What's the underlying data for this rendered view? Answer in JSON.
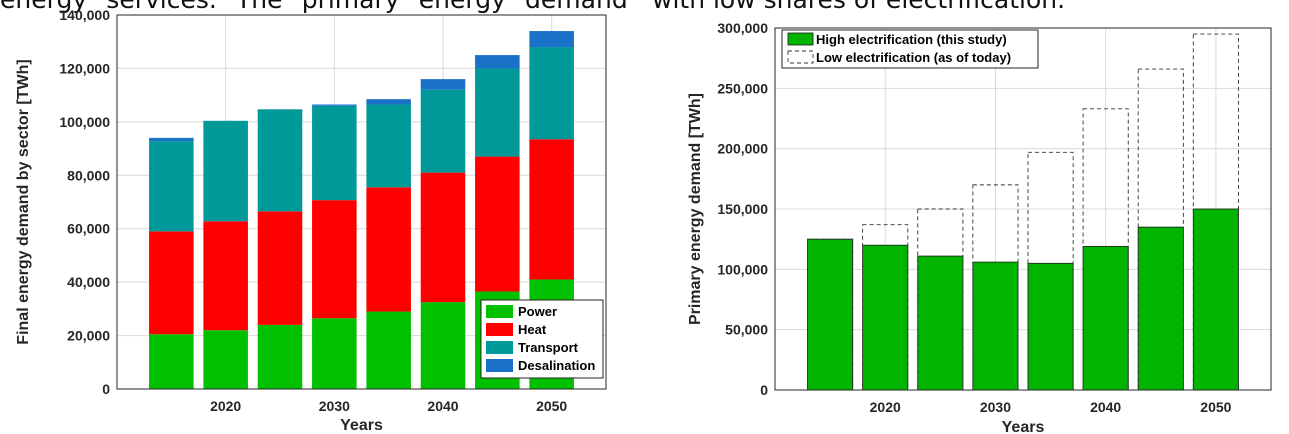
{
  "text_fragments": {
    "left": "energy services. The primary energy demand",
    "right": "with low shares of electrification."
  },
  "chart_data": [
    {
      "type": "bar",
      "stacked": true,
      "xlabel": "Years",
      "ylabel": "Final energy demand by sector [TWh]",
      "ylim": [
        0,
        140000
      ],
      "yticks": [
        "0",
        "20,000",
        "40,000",
        "60,000",
        "80,000",
        "100,000",
        "120,000",
        "140,000"
      ],
      "xticks": [
        "2020",
        "2030",
        "2040",
        "2050"
      ],
      "categories": [
        "2015",
        "2020",
        "2025",
        "2030",
        "2035",
        "2040",
        "2045",
        "2050"
      ],
      "grid": true,
      "legend_position": "bottom-right",
      "series": [
        {
          "name": "Power",
          "color": "#00c000",
          "values": [
            20500,
            22000,
            24000,
            26500,
            29000,
            32500,
            36500,
            41000
          ]
        },
        {
          "name": "Heat",
          "color": "#ff0000",
          "values": [
            38500,
            40800,
            42500,
            44200,
            46500,
            48500,
            50500,
            52500
          ]
        },
        {
          "name": "Transport",
          "color": "#009999",
          "values": [
            33700,
            37600,
            38200,
            35300,
            31000,
            31000,
            33000,
            34500
          ]
        },
        {
          "name": "Desalination",
          "color": "#1a72c8",
          "values": [
            1300,
            0,
            0,
            500,
            2000,
            4000,
            5000,
            6000
          ]
        }
      ]
    },
    {
      "type": "bar",
      "xlabel": "Years",
      "ylabel": "Primary energy demand [TWh]",
      "ylim": [
        0,
        300000
      ],
      "yticks": [
        "0",
        "50,000",
        "100,000",
        "150,000",
        "200,000",
        "250,000",
        "300,000"
      ],
      "xticks": [
        "2020",
        "2030",
        "2040",
        "2050"
      ],
      "categories": [
        "2015",
        "2020",
        "2025",
        "2030",
        "2035",
        "2040",
        "2045",
        "2050"
      ],
      "grid": true,
      "legend_position": "top-left",
      "series": [
        {
          "name": "High electrification (this study)",
          "color": "#00b400",
          "values": [
            125000,
            120000,
            111000,
            106000,
            105000,
            119000,
            135000,
            150000
          ]
        },
        {
          "name": "Low electrification (as of today)",
          "style": "dashed-outline",
          "values": [
            125000,
            137000,
            150000,
            170000,
            197000,
            233000,
            266000,
            295000
          ]
        }
      ]
    }
  ]
}
